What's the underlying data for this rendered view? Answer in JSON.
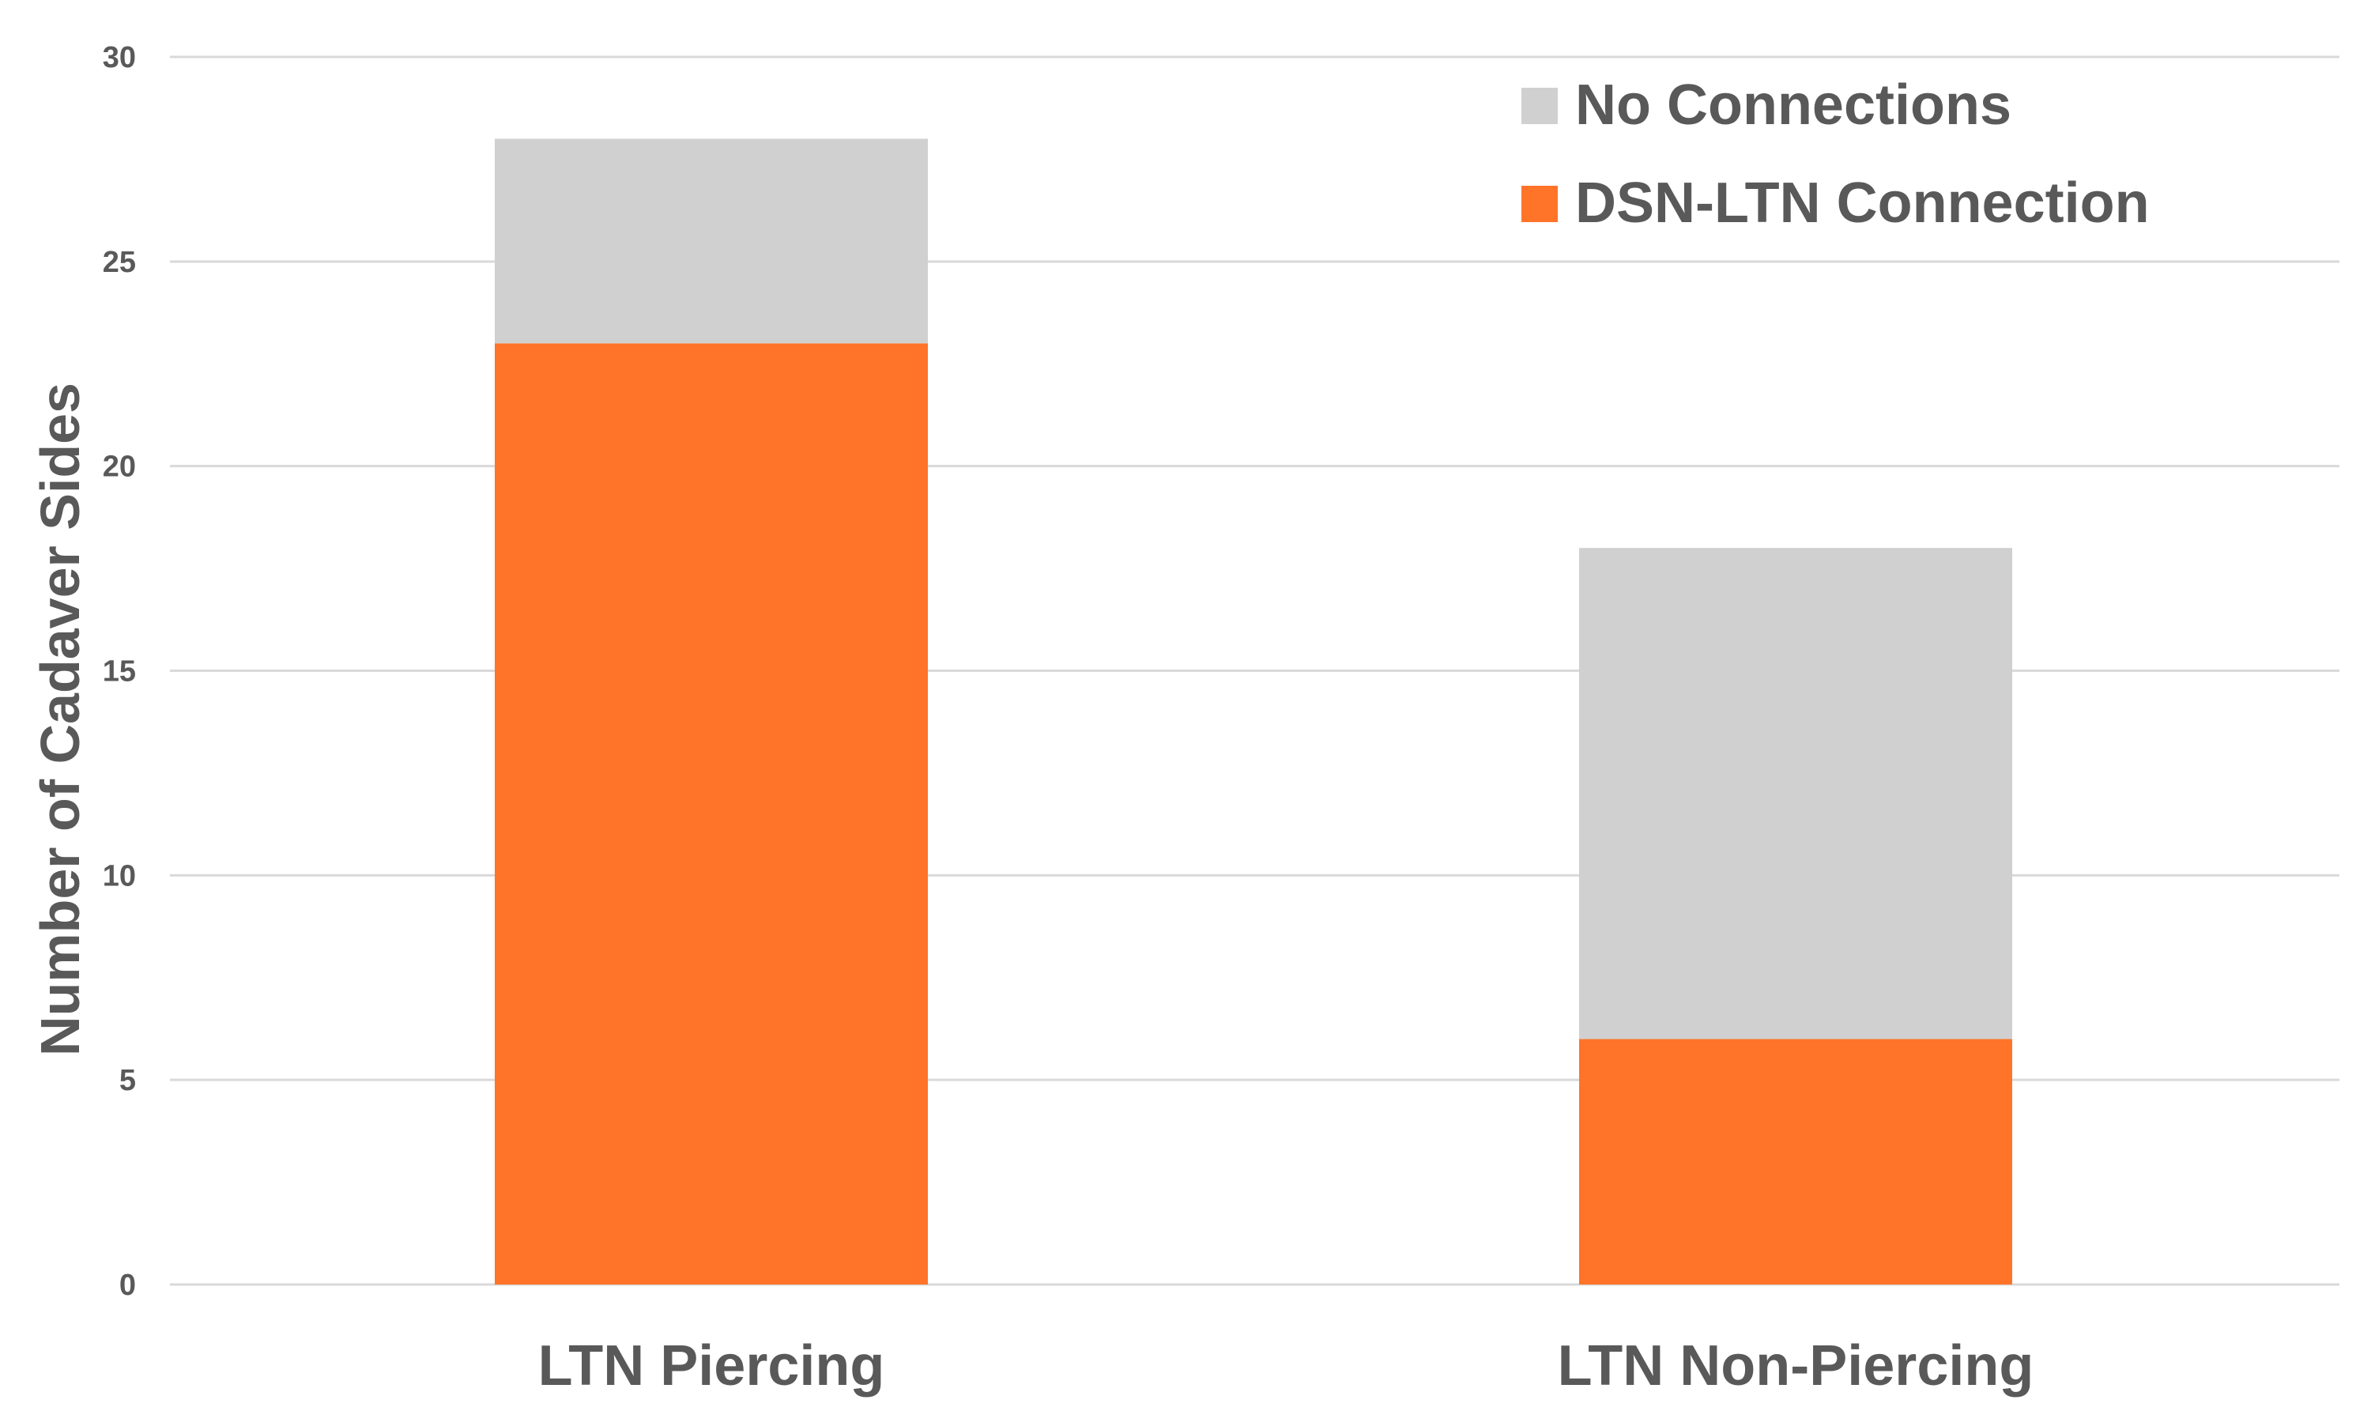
{
  "chart_data": {
    "type": "bar",
    "stacked": true,
    "categories": [
      "LTN Piercing",
      "LTN Non-Piercing"
    ],
    "series": [
      {
        "name": "DSN-LTN Connection",
        "values": [
          23,
          6
        ],
        "color": "#ff7429"
      },
      {
        "name": "No Connections",
        "values": [
          5,
          12
        ],
        "color": "#d0d0d0"
      }
    ],
    "legend_order": [
      "No Connections",
      "DSN-LTN Connection"
    ],
    "title": "",
    "xlabel": "",
    "ylabel": "Number of Cadaver Sides",
    "ylim": [
      0,
      30
    ],
    "yticks": [
      "0",
      "5",
      "10",
      "15",
      "20",
      "25",
      "30"
    ],
    "grid": "horizontal",
    "legend_position": "top-right",
    "colors": {
      "text": "#595959",
      "grid": "#d9d9d9"
    }
  }
}
